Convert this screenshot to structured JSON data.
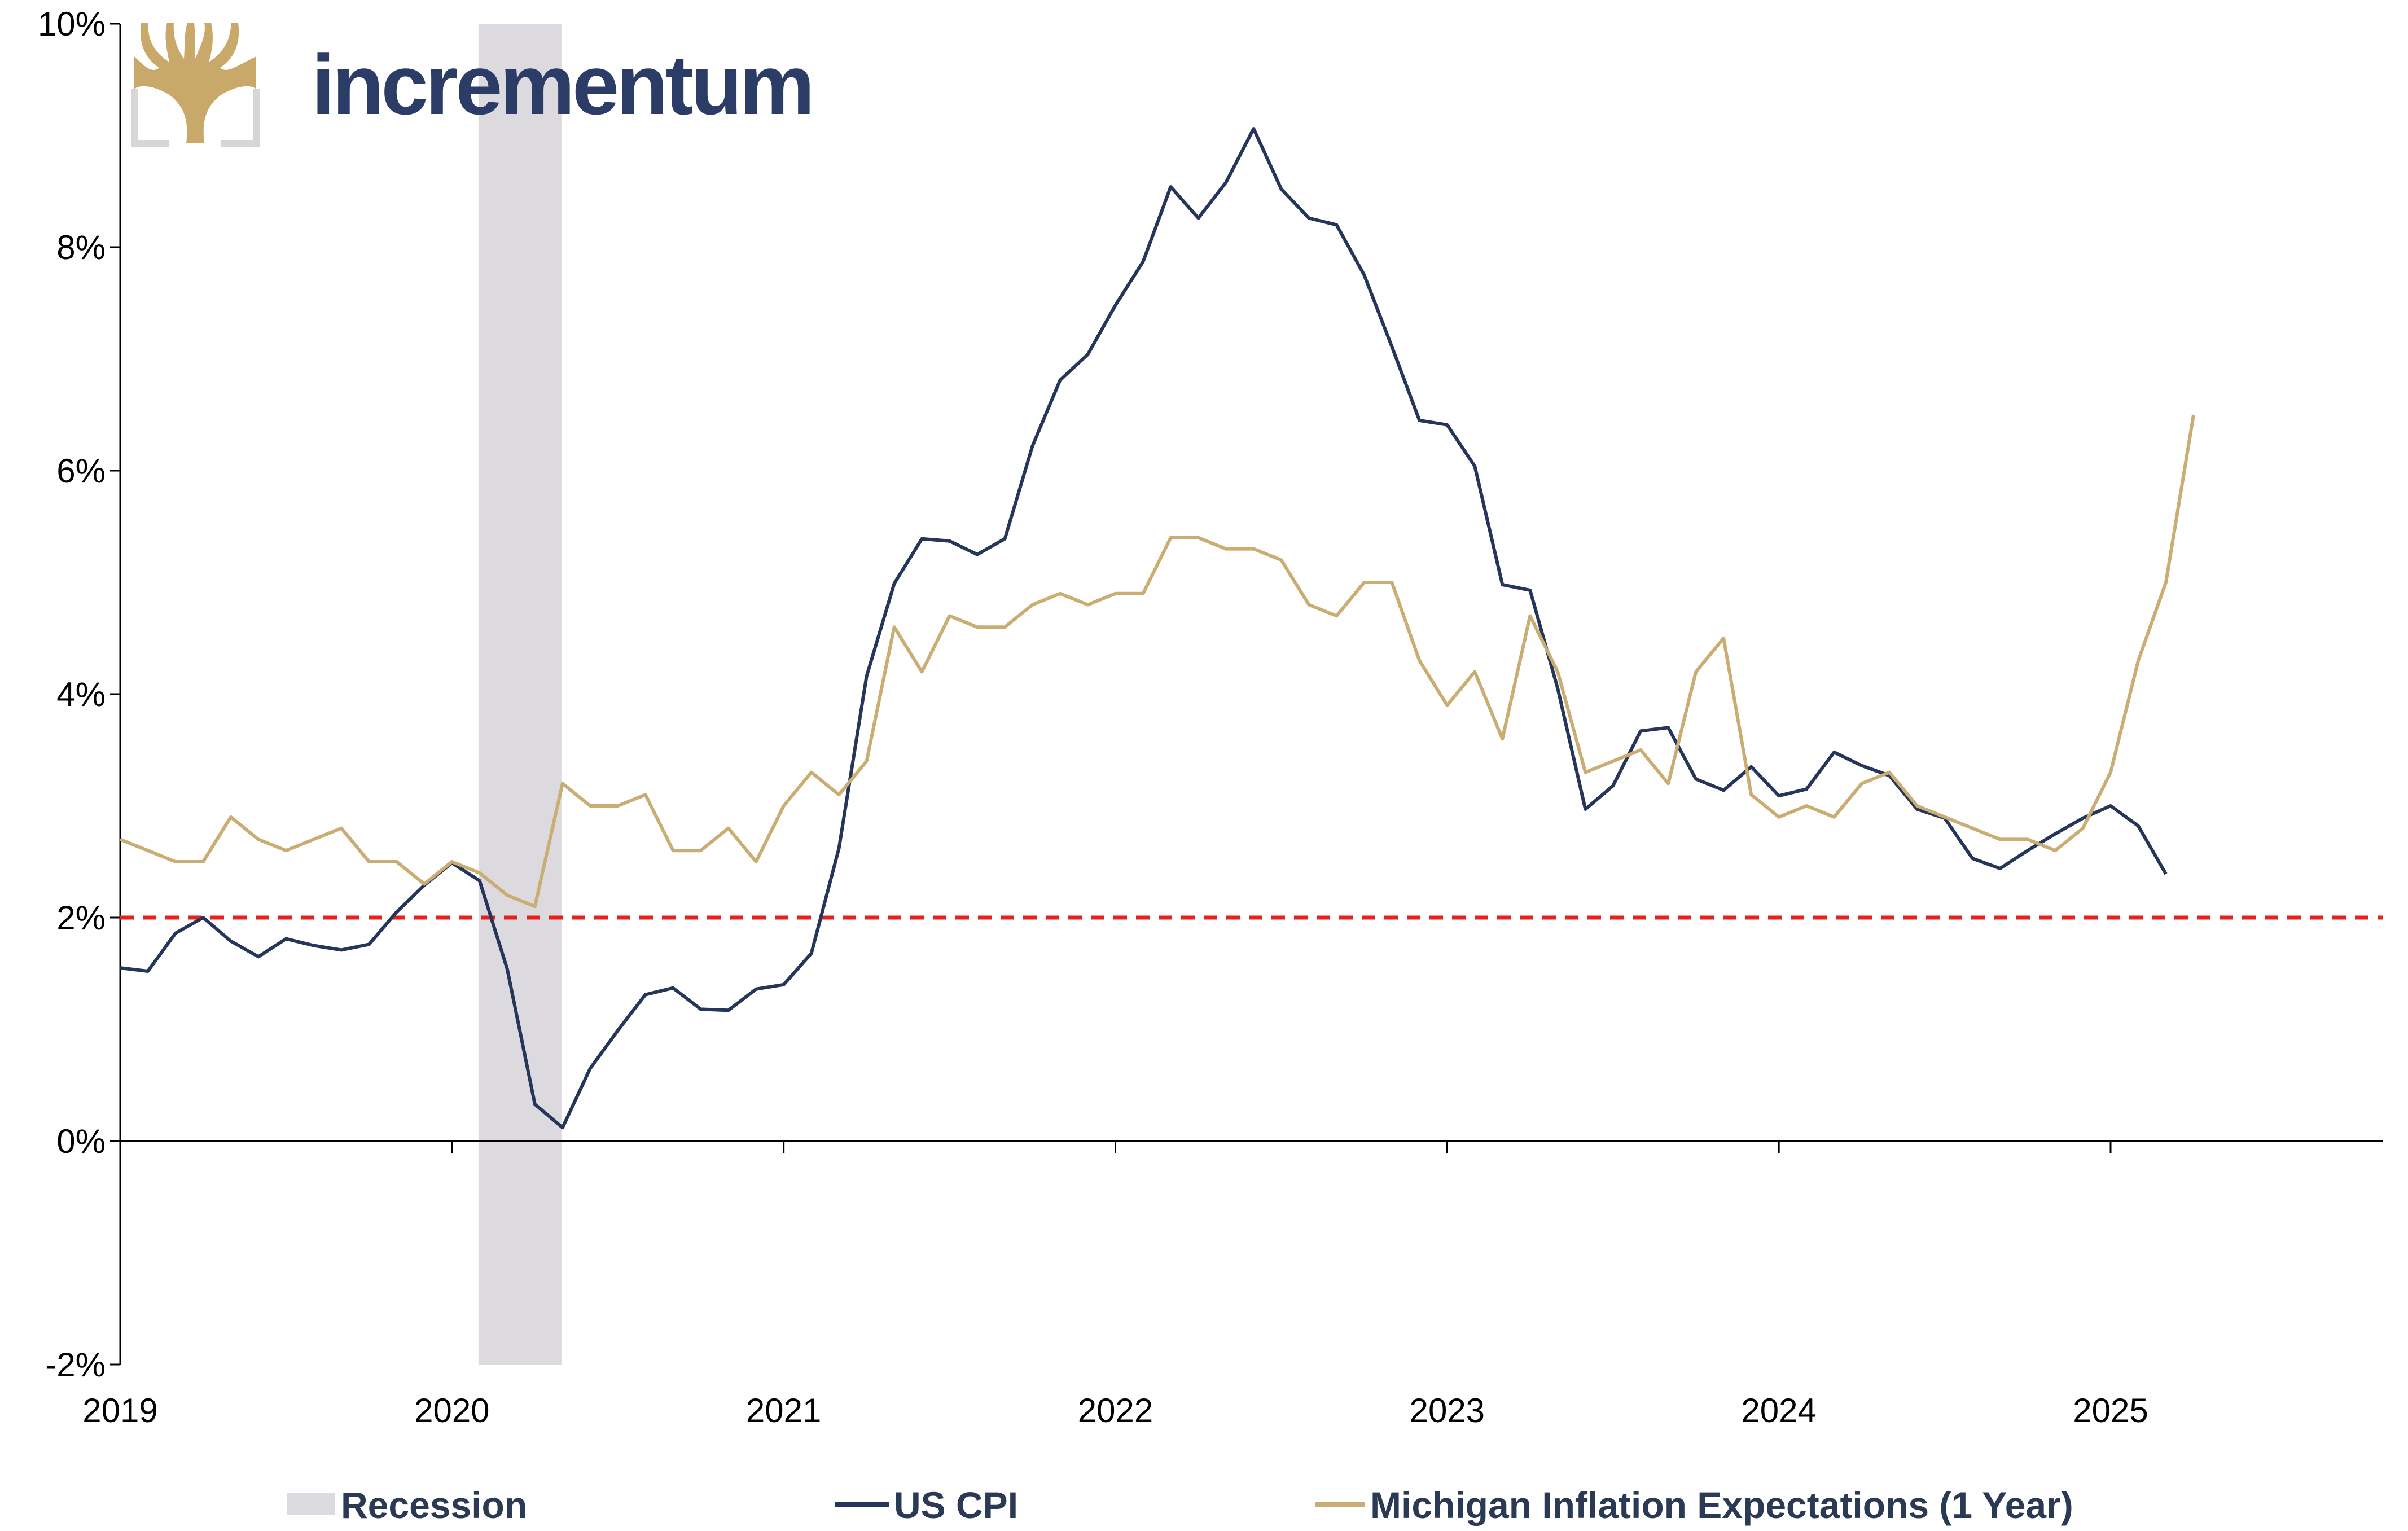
{
  "brand": {
    "name": "incrementum",
    "color": "#2b3d66",
    "logo_icon": "tree-logo-icon",
    "logo_color": "#c8a96a"
  },
  "chart_data": {
    "type": "line",
    "title": "",
    "xlabel": "",
    "ylabel": "",
    "x_ticks": [
      "2019",
      "2020",
      "2021",
      "2022",
      "2023",
      "2024",
      "2025"
    ],
    "y_ticks": [
      "10%",
      "8%",
      "6%",
      "4%",
      "2%",
      "0%",
      "-2%"
    ],
    "ylim": [
      -2,
      10
    ],
    "xlim": [
      2019.0,
      2025.25
    ],
    "grid": false,
    "legend_position": "bottom",
    "reference_line": {
      "value": 2,
      "style": "dashed",
      "color": "#e8201c"
    },
    "recession": {
      "name": "Recession",
      "start": 2020.08,
      "end": 2020.33,
      "color": "#dcdade"
    },
    "series": [
      {
        "name": "US CPI",
        "color": "#26365a",
        "start": 2019.0,
        "step_months": 1,
        "values": [
          1.55,
          1.52,
          1.86,
          2.0,
          1.79,
          1.65,
          1.81,
          1.75,
          1.71,
          1.76,
          2.05,
          2.29,
          2.49,
          2.33,
          1.54,
          0.33,
          0.12,
          0.65,
          0.99,
          1.31,
          1.37,
          1.18,
          1.17,
          1.36,
          1.4,
          1.68,
          2.62,
          4.16,
          4.99,
          5.39,
          5.37,
          5.25,
          5.39,
          6.22,
          6.81,
          7.04,
          7.48,
          7.87,
          8.54,
          8.26,
          8.58,
          9.06,
          8.52,
          8.26,
          8.2,
          7.75,
          7.11,
          6.45,
          6.41,
          6.04,
          4.98,
          4.93,
          4.05,
          2.97,
          3.18,
          3.67,
          3.7,
          3.24,
          3.14,
          3.35,
          3.09,
          3.15,
          3.48,
          3.36,
          3.27,
          2.97,
          2.89,
          2.53,
          2.44,
          2.6,
          2.75,
          2.89,
          3.0,
          2.82,
          2.39
        ]
      },
      {
        "name": "Michigan Inflation Expectations (1 Year)",
        "color": "#c9ad73",
        "start": 2019.0,
        "step_months": 1,
        "values": [
          2.7,
          2.6,
          2.5,
          2.5,
          2.9,
          2.7,
          2.6,
          2.7,
          2.8,
          2.5,
          2.5,
          2.3,
          2.5,
          2.4,
          2.2,
          2.1,
          3.2,
          3.0,
          3.0,
          3.1,
          2.6,
          2.6,
          2.8,
          2.5,
          3.0,
          3.3,
          3.1,
          3.4,
          4.6,
          4.2,
          4.7,
          4.6,
          4.6,
          4.8,
          4.9,
          4.8,
          4.9,
          4.9,
          5.4,
          5.4,
          5.3,
          5.3,
          5.2,
          4.8,
          4.7,
          5.0,
          5.0,
          4.3,
          3.9,
          4.2,
          3.6,
          4.7,
          4.2,
          3.3,
          3.4,
          3.5,
          3.2,
          4.2,
          4.5,
          3.1,
          2.9,
          3.0,
          2.9,
          3.2,
          3.3,
          3.0,
          2.9,
          2.8,
          2.7,
          2.7,
          2.6,
          2.8,
          3.3,
          4.3,
          5.0,
          6.5
        ]
      }
    ]
  }
}
